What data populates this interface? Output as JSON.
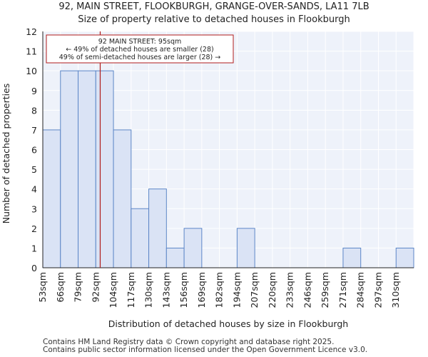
{
  "chart_data": {
    "type": "bar",
    "title": "92, MAIN STREET, FLOOKBURGH, GRANGE-OVER-SANDS, LA11 7LB",
    "subtitle": "Size of property relative to detached houses in Flookburgh",
    "xlabel": "Distribution of detached houses by size in Flookburgh",
    "ylabel": "Number of detached properties",
    "categories": [
      "53sqm",
      "66sqm",
      "79sqm",
      "92sqm",
      "104sqm",
      "117sqm",
      "130sqm",
      "143sqm",
      "156sqm",
      "169sqm",
      "182sqm",
      "194sqm",
      "207sqm",
      "220sqm",
      "233sqm",
      "246sqm",
      "259sqm",
      "271sqm",
      "284sqm",
      "297sqm",
      "310sqm"
    ],
    "values": [
      7,
      10,
      10,
      10,
      7,
      3,
      4,
      1,
      2,
      0,
      0,
      2,
      0,
      0,
      0,
      0,
      0,
      1,
      0,
      0,
      1
    ],
    "ylim": [
      0,
      12
    ],
    "yticks": [
      0,
      1,
      2,
      3,
      4,
      5,
      6,
      7,
      8,
      9,
      10,
      11,
      12
    ],
    "grid": true,
    "marker": {
      "value": 95,
      "label": "92 MAIN STREET: 95sqm"
    },
    "annotation": {
      "lines": [
        "92 MAIN STREET: 95sqm",
        "← 49% of detached houses are smaller (28)",
        "49% of semi-detached houses are larger (28) →"
      ]
    },
    "colors": {
      "bar_fill": "#dae3f5",
      "bar_stroke": "#5c86c7",
      "marker": "#b01c1c",
      "grid": "#dde4f0"
    }
  },
  "footer": {
    "line1": "Contains HM Land Registry data © Crown copyright and database right 2025.",
    "line2": "Contains public sector information licensed under the Open Government Licence v3.0."
  }
}
